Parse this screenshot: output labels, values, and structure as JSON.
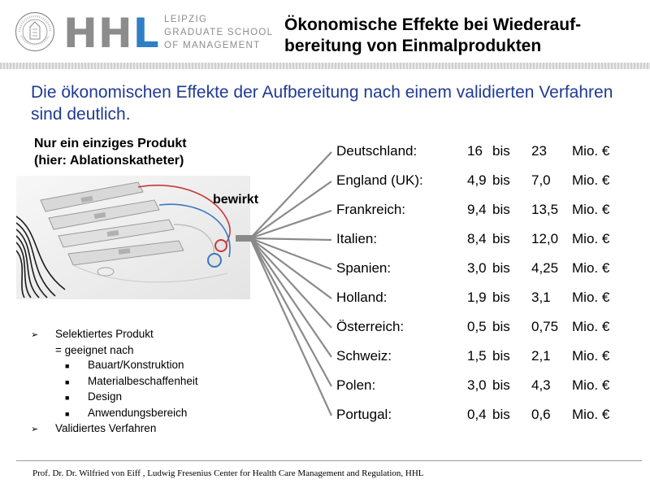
{
  "header": {
    "seal_text": "HANDELSHOCHSCHULE LEIPZIG · 1898",
    "logo_letters": "HH",
    "logo_letter_l": "L",
    "logo_lines": [
      "LEIPZIG",
      "GRADUATE SCHOOL",
      "OF MANAGEMENT"
    ],
    "title_line1": "Ökonomische Effekte bei Wiederauf-",
    "title_line2": "bereitung von Einmalprodukten"
  },
  "headline": "Die ökonomischen Effekte der Aufbereitung nach einem validierten Verfahren sind deutlich.",
  "product": {
    "line1": "Nur ein einziges Produkt",
    "line2": "(hier: Ablationskatheter)",
    "effect_label": "bewirkt"
  },
  "criteria": {
    "item1": "Selektiertes Produkt",
    "item1_sub": "= geeignet nach",
    "bullets": [
      "Bauart/Konstruktion",
      "Materialbeschaffenheit",
      "Design",
      "Anwendungsbereich"
    ],
    "item2": "Validiertes Verfahren"
  },
  "countries": [
    {
      "country": "Deutschland:",
      "low": "16",
      "bis": "bis",
      "high": "23",
      "unit": "Mio. €"
    },
    {
      "country": "England (UK):",
      "low": "4,9",
      "bis": "bis",
      "high": "7,0",
      "unit": "Mio. €"
    },
    {
      "country": "Frankreich:",
      "low": "9,4",
      "bis": "bis",
      "high": "13,5",
      "unit": "Mio. €"
    },
    {
      "country": "Italien:",
      "low": "8,4",
      "bis": "bis",
      "high": "12,0",
      "unit": "Mio. €"
    },
    {
      "country": "Spanien:",
      "low": "3,0",
      "bis": "bis",
      "high": "4,25",
      "unit": "Mio. €"
    },
    {
      "country": "Holland:",
      "low": "1,9",
      "bis": "bis",
      "high": "3,1",
      "unit": "Mio. €"
    },
    {
      "country": "Österreich:",
      "low": "0,5",
      "bis": "bis",
      "high": "0,75",
      "unit": "Mio. €"
    },
    {
      "country": "Schweiz:",
      "low": "1,5",
      "bis": "bis",
      "high": "2,1",
      "unit": "Mio. €"
    },
    {
      "country": "Polen:",
      "low": "3,0",
      "bis": "bis",
      "high": "4,3",
      "unit": "Mio. €"
    },
    {
      "country": "Portugal:",
      "low": "0,4",
      "bis": "bis",
      "high": "0,6",
      "unit": "Mio. €"
    }
  ],
  "footer": "Prof. Dr. Dr. Wilfried von Eiff , Ludwig Fresenius Center for Health Care Management and Regulation, HHL",
  "colors": {
    "headline": "#1f3a93",
    "logo_l": "#2f7ec6",
    "logo_gray": "#8c8c8c"
  }
}
